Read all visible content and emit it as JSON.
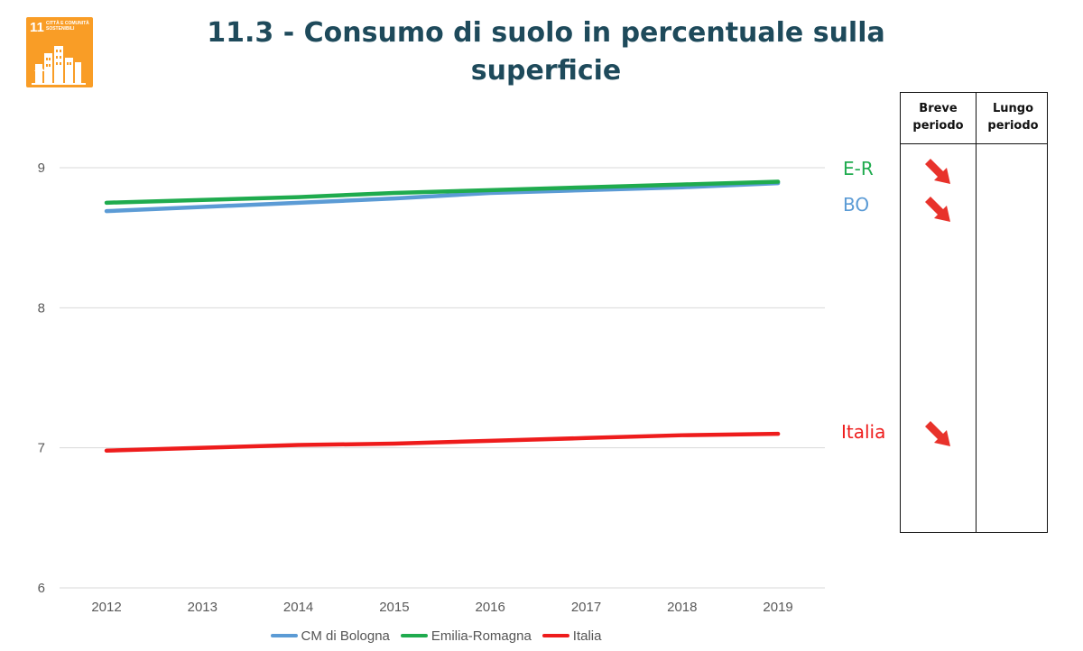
{
  "title": "11.3 - Consumo di suolo in percentuale sulla superficie",
  "badge": {
    "number": "11",
    "label": "CITTÀ E COMUNITÀ SOSTENIBILI",
    "color": "#f99d26"
  },
  "table": {
    "col1": "Breve periodo",
    "col2": "Lungo periodo",
    "arrow_color": "#e8322b",
    "arrow_icon": "arrow-down-right-icon"
  },
  "series_labels": {
    "er": "E-R",
    "bo": "BO",
    "italia": "Italia"
  },
  "chart_data": {
    "type": "line",
    "x": [
      2012,
      2013,
      2014,
      2015,
      2016,
      2017,
      2018,
      2019
    ],
    "series": [
      {
        "name": "CM di Bologna",
        "color": "#5b9bd5",
        "values": [
          8.69,
          8.72,
          8.75,
          8.78,
          8.82,
          8.84,
          8.86,
          8.89
        ]
      },
      {
        "name": "Emilia-Romagna",
        "color": "#1fab4e",
        "values": [
          8.75,
          8.77,
          8.79,
          8.82,
          8.84,
          8.86,
          8.88,
          8.9
        ]
      },
      {
        "name": "Italia",
        "color": "#ee1c1c",
        "values": [
          6.98,
          7.0,
          7.02,
          7.03,
          7.05,
          7.07,
          7.09,
          7.1
        ]
      }
    ],
    "y_ticks": [
      6,
      7,
      8,
      9
    ],
    "ylim": [
      6,
      9
    ],
    "xlabel": "",
    "ylabel": "",
    "grid": true,
    "legend": "bottom"
  }
}
